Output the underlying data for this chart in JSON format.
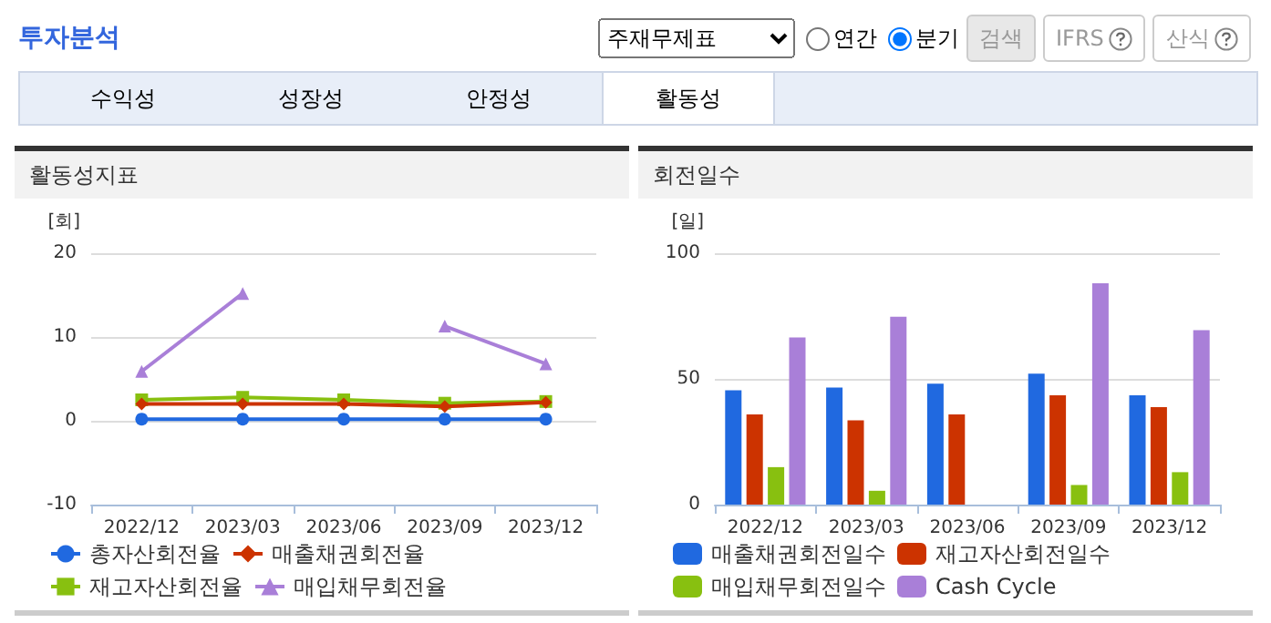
{
  "chart_data": [
    {
      "type": "other",
      "annotations": [
        "투자분석",
        "주재무제표",
        "연간",
        "분기",
        "검색",
        "IFRS",
        "산식",
        "수익성",
        "성장성",
        "안정성",
        "활동성"
      ]
    },
    {
      "type": "line",
      "title": "활동성지표",
      "ylabel": "[회]",
      "categories": [
        "2022/12",
        "2023/03",
        "2023/06",
        "2023/09",
        "2023/12"
      ],
      "ylim": [
        -10,
        20
      ],
      "yticks": [
        -10,
        0,
        10,
        20
      ],
      "grid": "y",
      "legend": "bottom",
      "series": [
        {
          "name": "총자산회전율",
          "color": "#2069e0",
          "marker": "circle",
          "values": [
            0.2,
            0.2,
            0.2,
            0.2,
            0.2
          ]
        },
        {
          "name": "매출채권회전율",
          "color": "#cc3300",
          "marker": "diamond",
          "values": [
            2.0,
            2.0,
            2.0,
            1.7,
            2.2
          ]
        },
        {
          "name": "재고자산회전율",
          "color": "#88c010",
          "marker": "square",
          "values": [
            2.5,
            2.8,
            2.5,
            2.1,
            2.3
          ]
        },
        {
          "name": "매입채무회전율",
          "color": "#a97fd8",
          "marker": "triangle",
          "values": [
            5.9,
            15.2,
            null,
            11.3,
            6.8
          ]
        }
      ]
    },
    {
      "type": "bar",
      "title": "회전일수",
      "ylabel": "[일]",
      "categories": [
        "2022/12",
        "2023/03",
        "2023/06",
        "2023/09",
        "2023/12"
      ],
      "ylim": [
        0,
        100
      ],
      "yticks": [
        0,
        50,
        100
      ],
      "grid": "y",
      "legend": "bottom",
      "series": [
        {
          "name": "매출채권회전일수",
          "color": "#2069e0",
          "values": [
            45.5,
            46.6,
            48.1,
            52.1,
            43.5
          ]
        },
        {
          "name": "재고자산회전일수",
          "color": "#cc3300",
          "values": [
            35.9,
            33.5,
            35.9,
            43.5,
            38.8
          ]
        },
        {
          "name": "매입채무회전일수",
          "color": "#88c010",
          "values": [
            14.9,
            5.5,
            null,
            7.8,
            12.9
          ]
        },
        {
          "name": "Cash Cycle",
          "color": "#a97fd8",
          "values": [
            66.5,
            74.7,
            null,
            88.0,
            69.4
          ]
        }
      ]
    }
  ]
}
